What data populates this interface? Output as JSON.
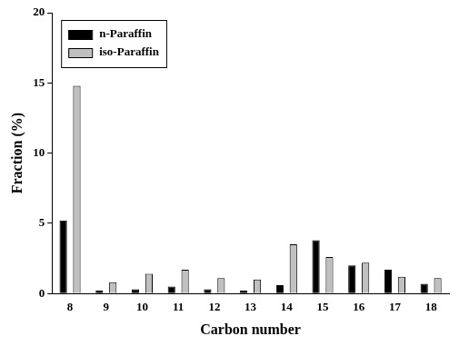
{
  "chart_data": {
    "type": "bar",
    "x_label": "Carbon number",
    "y_label": "Fraction (%)",
    "categories": [
      8,
      9,
      10,
      11,
      12,
      13,
      14,
      15,
      16,
      17,
      18
    ],
    "series": [
      {
        "name": "n-Paraffin",
        "color": "#000000",
        "values": [
          5.2,
          0.2,
          0.3,
          0.5,
          0.3,
          0.2,
          0.6,
          3.8,
          2.0,
          1.7,
          0.7
        ]
      },
      {
        "name": "iso-Paraffin",
        "color": "#c0c0c0",
        "values": [
          14.8,
          0.8,
          1.4,
          1.7,
          1.1,
          1.0,
          3.5,
          2.6,
          2.2,
          1.2,
          1.1
        ]
      }
    ],
    "ylim": [
      0,
      20
    ],
    "yticks": [
      0,
      5,
      10,
      15,
      20
    ],
    "grid": false,
    "legend": "upper left"
  }
}
